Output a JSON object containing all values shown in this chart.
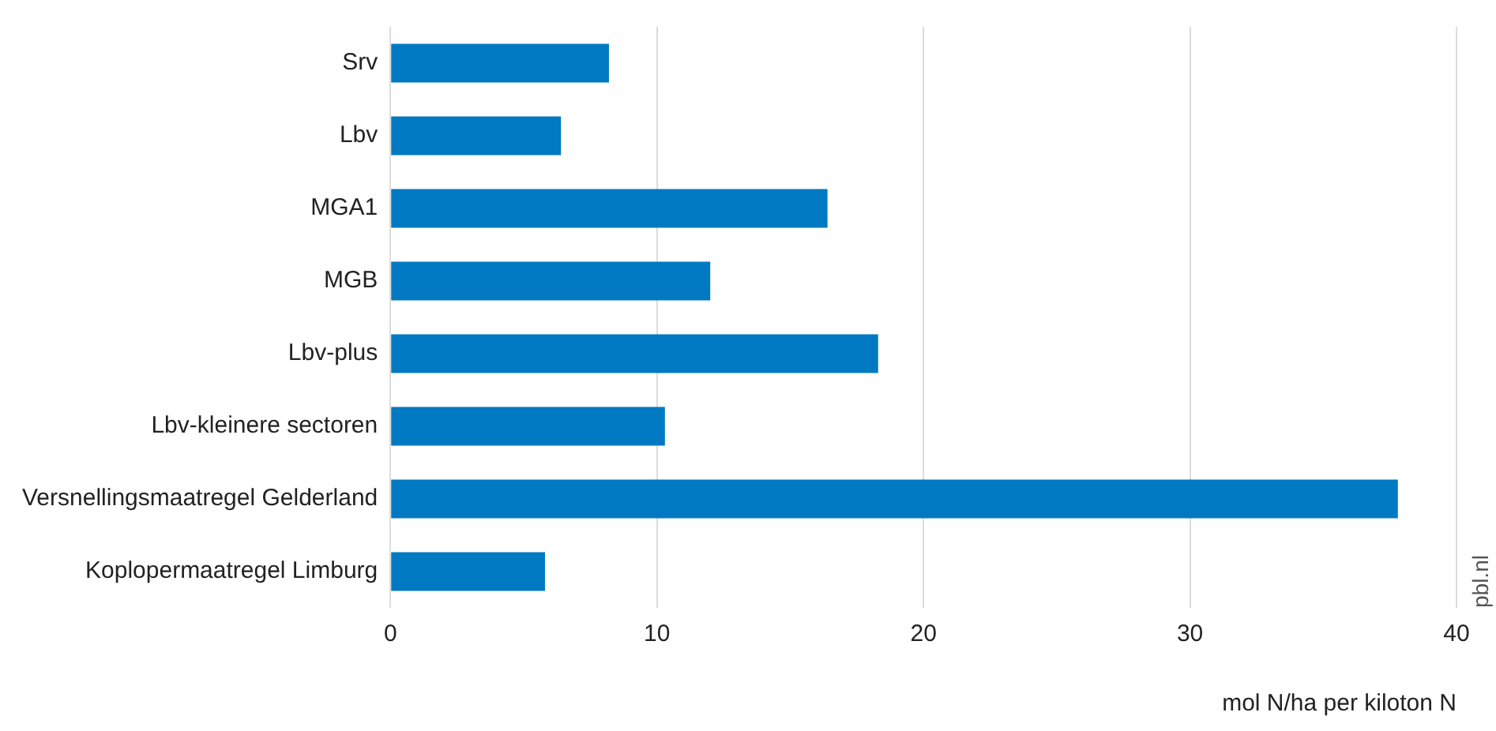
{
  "chart_data": {
    "type": "bar",
    "orientation": "horizontal",
    "categories": [
      "Srv",
      "Lbv",
      "MGA1",
      "MGB",
      "Lbv-plus",
      "Lbv-kleinere sectoren",
      "Versnellingsmaatregel Gelderland",
      "Koplopermaatregel Limburg"
    ],
    "values": [
      8.2,
      6.4,
      16.4,
      12.0,
      18.3,
      10.3,
      37.8,
      5.8
    ],
    "color": "#0079c2",
    "xlabel": "mol N/ha per kiloton N",
    "xlim": [
      0,
      40
    ],
    "xticks": [
      0,
      10,
      20,
      30,
      40
    ],
    "grid": "x",
    "legend": false,
    "annotations": [
      "pbl.nl"
    ]
  }
}
